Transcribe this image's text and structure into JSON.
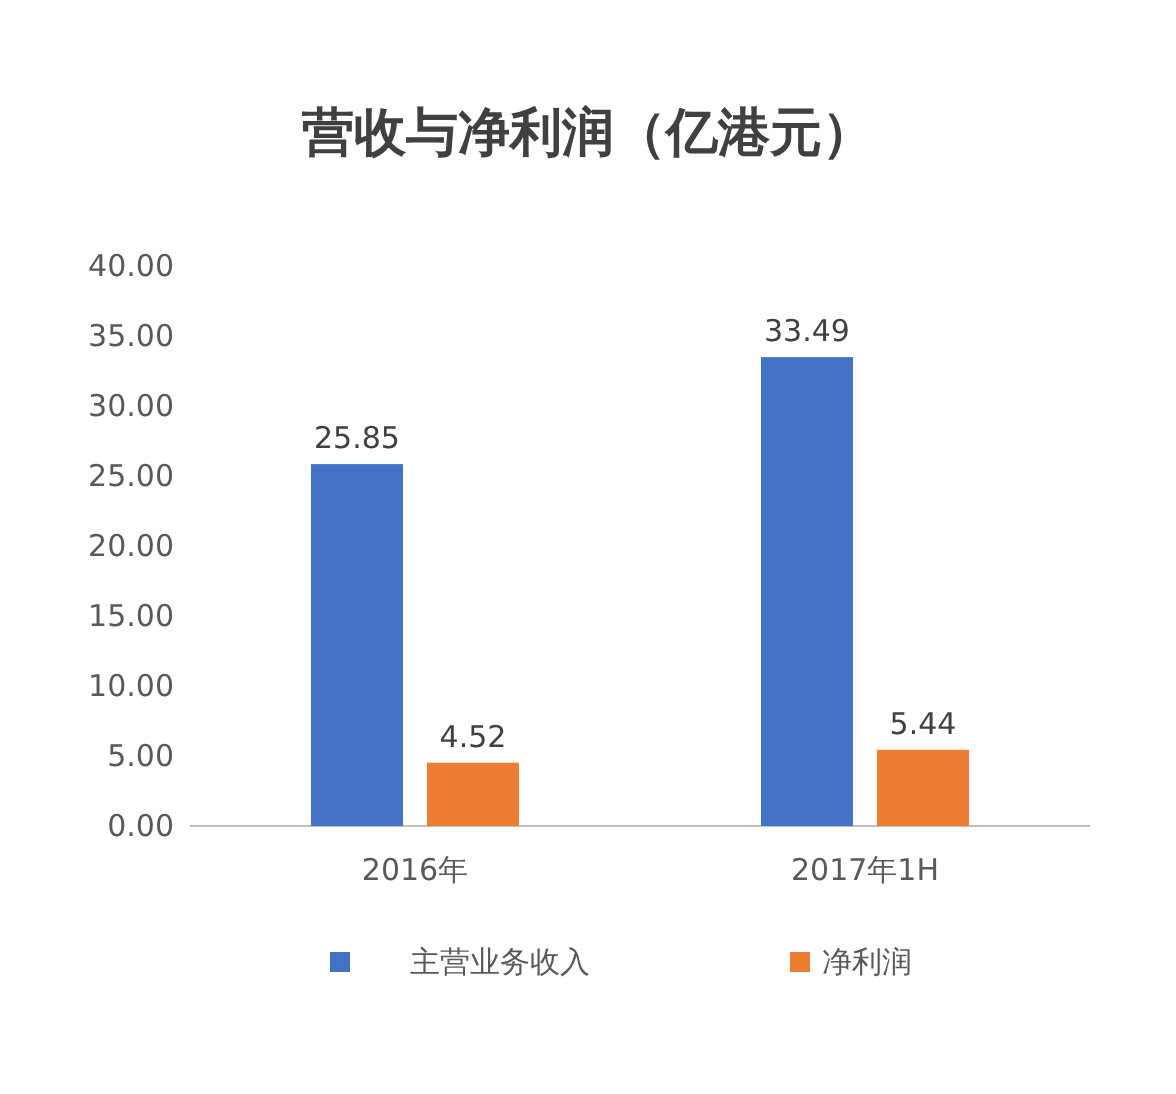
{
  "chart_data": {
    "type": "bar",
    "title": "营收与净利润（亿港元）",
    "categories": [
      "2016年",
      "2017年1H"
    ],
    "series": [
      {
        "name": "主营业务收入",
        "color": "#4472c4",
        "values": [
          25.85,
          33.49
        ]
      },
      {
        "name": "净利润",
        "color": "#ed7d31",
        "values": [
          4.52,
          5.44
        ]
      }
    ],
    "ylim": [
      0,
      40
    ],
    "yticks": [
      {
        "value": 0,
        "label": "0.00"
      },
      {
        "value": 5,
        "label": "5.00"
      },
      {
        "value": 10,
        "label": "10.00"
      },
      {
        "value": 15,
        "label": "15.00"
      },
      {
        "value": 20,
        "label": "20.00"
      },
      {
        "value": 25,
        "label": "25.00"
      },
      {
        "value": 30,
        "label": "30.00"
      },
      {
        "value": 35,
        "label": "35.00"
      },
      {
        "value": 40,
        "label": "40.00"
      }
    ],
    "grid": false,
    "legend": "bottom",
    "data_labels": true
  }
}
